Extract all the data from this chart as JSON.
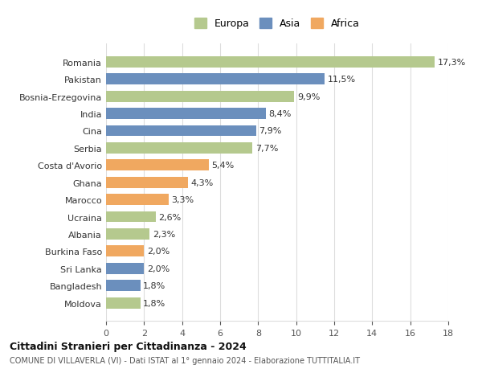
{
  "categories": [
    "Moldova",
    "Bangladesh",
    "Sri Lanka",
    "Burkina Faso",
    "Albania",
    "Ucraina",
    "Marocco",
    "Ghana",
    "Costa d'Avorio",
    "Serbia",
    "Cina",
    "India",
    "Bosnia-Erzegovina",
    "Pakistan",
    "Romania"
  ],
  "values": [
    1.8,
    1.8,
    2.0,
    2.0,
    2.3,
    2.6,
    3.3,
    4.3,
    5.4,
    7.7,
    7.9,
    8.4,
    9.9,
    11.5,
    17.3
  ],
  "labels": [
    "1,8%",
    "1,8%",
    "2,0%",
    "2,0%",
    "2,3%",
    "2,6%",
    "3,3%",
    "4,3%",
    "5,4%",
    "7,7%",
    "7,9%",
    "8,4%",
    "9,9%",
    "11,5%",
    "17,3%"
  ],
  "continents": [
    "Europa",
    "Asia",
    "Asia",
    "Africa",
    "Europa",
    "Europa",
    "Africa",
    "Africa",
    "Africa",
    "Europa",
    "Asia",
    "Asia",
    "Europa",
    "Asia",
    "Europa"
  ],
  "colors": {
    "Europa": "#b5c98e",
    "Asia": "#6b8fbd",
    "Africa": "#f0a860"
  },
  "legend_order": [
    "Europa",
    "Asia",
    "Africa"
  ],
  "xlim": [
    0,
    18
  ],
  "xticks": [
    0,
    2,
    4,
    6,
    8,
    10,
    12,
    14,
    16,
    18
  ],
  "title": "Cittadini Stranieri per Cittadinanza - 2024",
  "subtitle": "COMUNE DI VILLAVERLA (VI) - Dati ISTAT al 1° gennaio 2024 - Elaborazione TUTTITALIA.IT",
  "background_color": "#ffffff",
  "grid_color": "#dddddd",
  "bar_height": 0.65
}
